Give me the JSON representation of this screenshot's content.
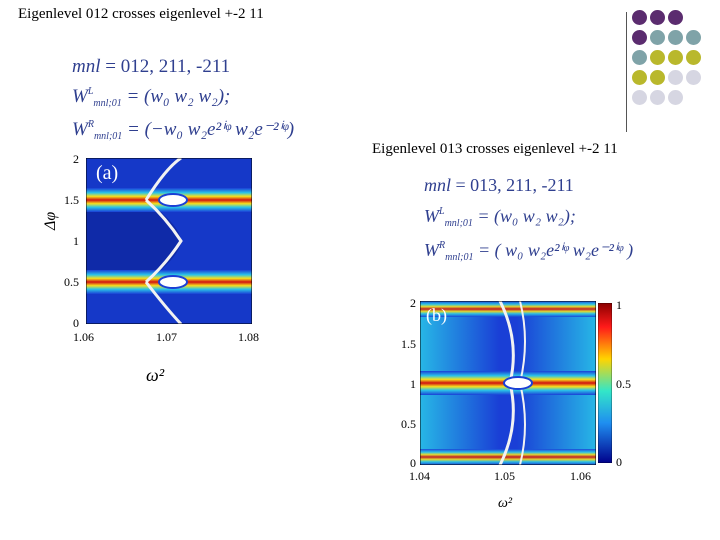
{
  "slide": {
    "title_a": "Eigenlevel 012 crosses eigenlevel +-2 11",
    "title_b": "Eigenlevel 013 crosses eigenlevel +-2 11"
  },
  "panel_a": {
    "label": "(a)",
    "eq_mnl_lhs": "mnl",
    "eq_mnl_rhs": "= 012,   211,   -211",
    "eq_wl_W": "W",
    "eq_wl_sup": "L",
    "eq_wl_sub": "mnl;01",
    "eq_wl_rhs": "= (w₀  w₂  w₂);",
    "eq_wr_W": "W",
    "eq_wr_sup": "R",
    "eq_wr_sub": "mnl;01",
    "eq_wr_rhs": "= (−w₀  w₂e²ⁱᵠ  w₂e⁻²ⁱᵠ)",
    "ylabel": "Δφ",
    "xlabel": "ω²",
    "yticks": [
      "2",
      "1.5",
      "1",
      "0.5",
      "0"
    ],
    "xticks": [
      "1.06",
      "1.07",
      "1.08"
    ]
  },
  "panel_b": {
    "label": "(b)",
    "eq_mnl_lhs": "mnl",
    "eq_mnl_rhs": "= 013,   211,   -211",
    "eq_wl_W": "W",
    "eq_wl_sup": "L",
    "eq_wl_sub": "mnl;01",
    "eq_wl_rhs": "= (w₀  w₂  w₂);",
    "eq_wr_W": "W",
    "eq_wr_sup": "R",
    "eq_wr_sub": "mnl;01",
    "eq_wr_rhs": "= ( w₀  w₂e²ⁱᵠ  w₂e⁻²ⁱᵠ )",
    "xlabel": "ω²",
    "yticks": [
      "2",
      "1.5",
      "1",
      "0.5",
      "0"
    ],
    "xticks": [
      "1.04",
      "1.05",
      "1.06"
    ],
    "colorbar_ticks": [
      "1",
      "0.5",
      "0"
    ]
  },
  "decor": {
    "dot_colors": [
      "#5b2c6f",
      "#7fa3a8",
      "#b9b82c",
      "#d6d6e2"
    ]
  }
}
